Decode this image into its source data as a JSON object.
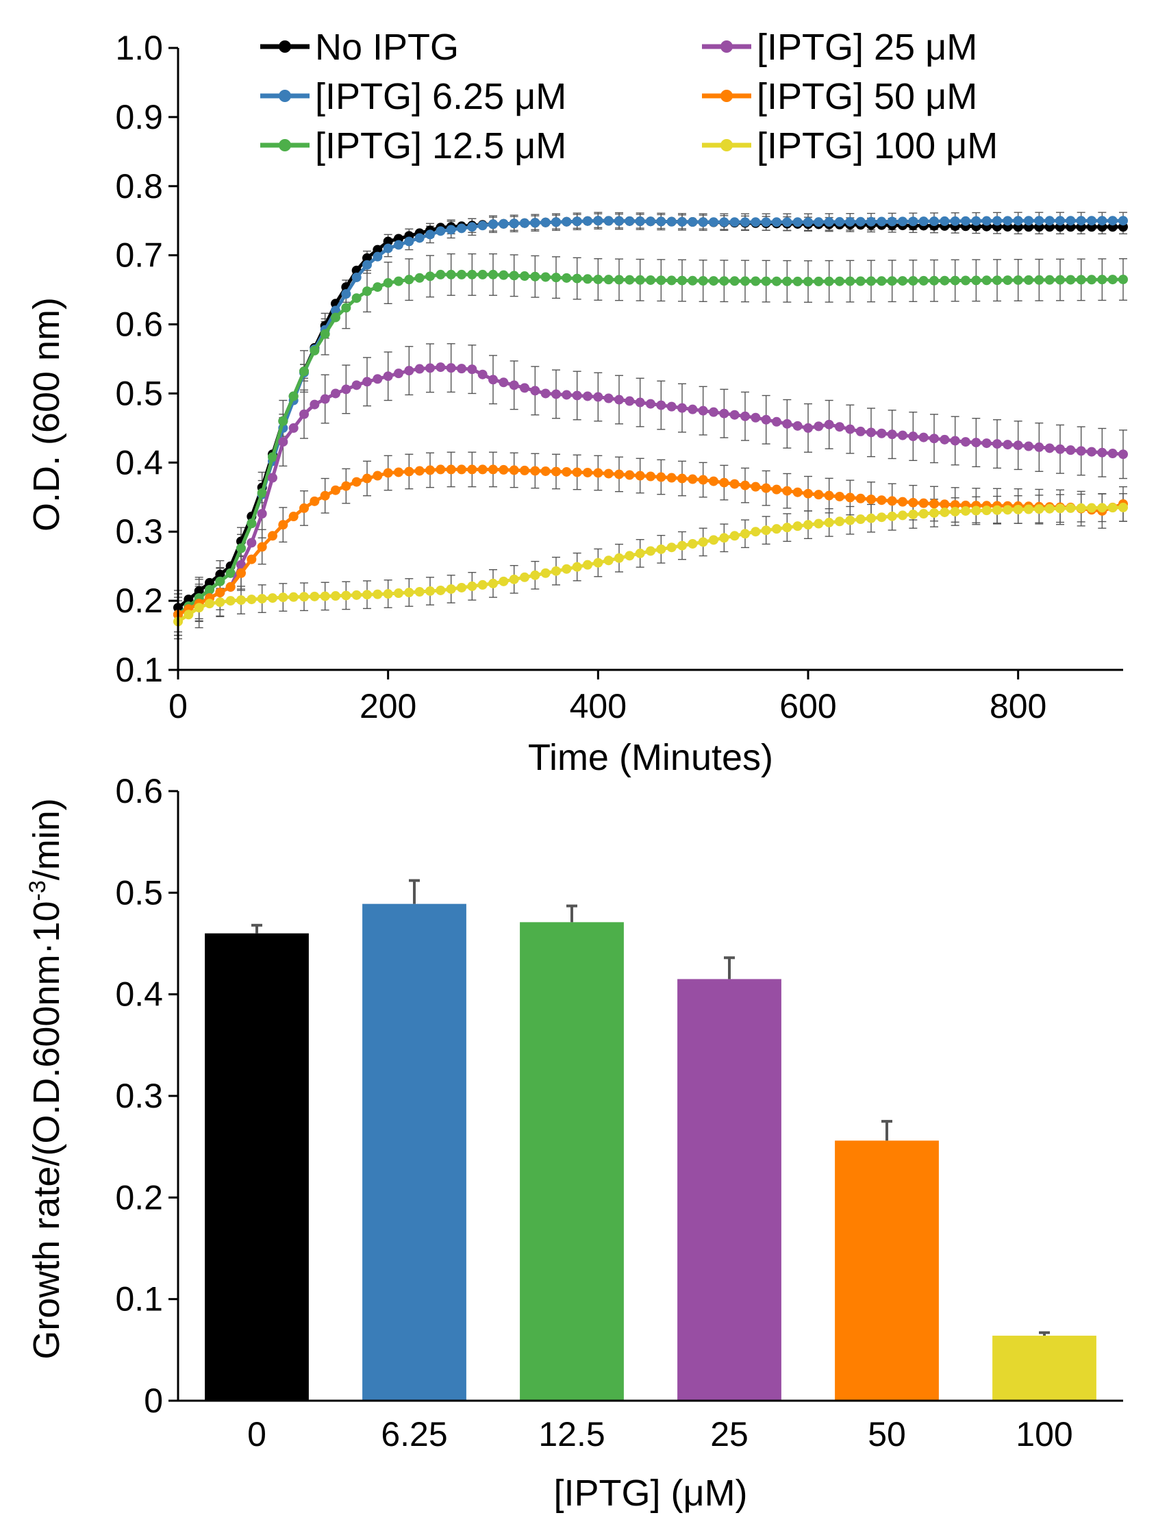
{
  "chart_data": [
    {
      "type": "line",
      "title": "",
      "xlabel": "Time (Minutes)",
      "ylabel": "O.D. (600 nm)",
      "xlim": [
        0,
        900
      ],
      "ylim": [
        0.1,
        1.0
      ],
      "xticks": [
        0,
        200,
        400,
        600,
        800
      ],
      "xtick_labels": [
        "0",
        "200",
        "400",
        "600",
        "800"
      ],
      "yticks": [
        0.1,
        0.2,
        0.3,
        0.4,
        0.5,
        0.6,
        0.7,
        0.8,
        0.9,
        1.0
      ],
      "ytick_labels": [
        "0.1",
        "0.2",
        "0.3",
        "0.4",
        "0.5",
        "0.6",
        "0.7",
        "0.8",
        "0.9",
        "1.0"
      ],
      "legend_position": "top",
      "error_bars": true,
      "series": [
        {
          "name": "No IPTG",
          "color": "#000000",
          "points": [
            [
              0,
              0.19
            ],
            [
              50,
              0.25
            ],
            [
              75,
              0.34
            ],
            [
              100,
              0.46
            ],
            [
              125,
              0.55
            ],
            [
              150,
              0.63
            ],
            [
              175,
              0.69
            ],
            [
              200,
              0.72
            ],
            [
              250,
              0.74
            ],
            [
              300,
              0.745
            ],
            [
              400,
              0.75
            ],
            [
              500,
              0.748
            ],
            [
              600,
              0.745
            ],
            [
              700,
              0.743
            ],
            [
              800,
              0.741
            ],
            [
              900,
              0.741
            ]
          ],
          "error": 0.01
        },
        {
          "name": "[IPTG] 6.25 μM",
          "color": "#3A7DB8",
          "points": [
            [
              0,
              0.18
            ],
            [
              50,
              0.24
            ],
            [
              75,
              0.33
            ],
            [
              100,
              0.45
            ],
            [
              125,
              0.55
            ],
            [
              150,
              0.62
            ],
            [
              175,
              0.68
            ],
            [
              200,
              0.71
            ],
            [
              250,
              0.735
            ],
            [
              300,
              0.745
            ],
            [
              400,
              0.75
            ],
            [
              500,
              0.748
            ],
            [
              600,
              0.748
            ],
            [
              700,
              0.749
            ],
            [
              800,
              0.75
            ],
            [
              900,
              0.75
            ]
          ],
          "error": 0.012
        },
        {
          "name": "[IPTG] 12.5 μM",
          "color": "#4DAF4A",
          "points": [
            [
              0,
              0.18
            ],
            [
              50,
              0.24
            ],
            [
              75,
              0.33
            ],
            [
              100,
              0.46
            ],
            [
              125,
              0.55
            ],
            [
              150,
              0.61
            ],
            [
              175,
              0.645
            ],
            [
              200,
              0.66
            ],
            [
              250,
              0.672
            ],
            [
              300,
              0.672
            ],
            [
              400,
              0.665
            ],
            [
              500,
              0.663
            ],
            [
              600,
              0.662
            ],
            [
              700,
              0.663
            ],
            [
              800,
              0.664
            ],
            [
              900,
              0.665
            ]
          ],
          "error": 0.03
        },
        {
          "name": "[IPTG] 25 μM",
          "color": "#984EA3",
          "points": [
            [
              0,
              0.18
            ],
            [
              50,
              0.22
            ],
            [
              75,
              0.3
            ],
            [
              100,
              0.43
            ],
            [
              125,
              0.48
            ],
            [
              150,
              0.5
            ],
            [
              175,
              0.515
            ],
            [
              200,
              0.525
            ],
            [
              225,
              0.535
            ],
            [
              250,
              0.538
            ],
            [
              280,
              0.535
            ],
            [
              300,
              0.52
            ],
            [
              350,
              0.5
            ],
            [
              400,
              0.495
            ],
            [
              450,
              0.485
            ],
            [
              500,
              0.475
            ],
            [
              550,
              0.465
            ],
            [
              600,
              0.45
            ],
            [
              620,
              0.455
            ],
            [
              650,
              0.445
            ],
            [
              700,
              0.438
            ],
            [
              750,
              0.43
            ],
            [
              800,
              0.425
            ],
            [
              850,
              0.418
            ],
            [
              900,
              0.412
            ]
          ],
          "error": 0.035
        },
        {
          "name": "[IPTG] 50 μM",
          "color": "#FF7F00",
          "points": [
            [
              0,
              0.18
            ],
            [
              50,
              0.22
            ],
            [
              75,
              0.27
            ],
            [
              100,
              0.31
            ],
            [
              125,
              0.34
            ],
            [
              150,
              0.36
            ],
            [
              175,
              0.375
            ],
            [
              200,
              0.385
            ],
            [
              250,
              0.39
            ],
            [
              300,
              0.39
            ],
            [
              400,
              0.385
            ],
            [
              450,
              0.38
            ],
            [
              500,
              0.375
            ],
            [
              550,
              0.365
            ],
            [
              600,
              0.355
            ],
            [
              650,
              0.348
            ],
            [
              700,
              0.342
            ],
            [
              750,
              0.338
            ],
            [
              800,
              0.337
            ],
            [
              850,
              0.335
            ],
            [
              880,
              0.33
            ],
            [
              900,
              0.34
            ]
          ],
          "error": 0.025
        },
        {
          "name": "[IPTG] 100 μM",
          "color": "#E5D82E",
          "points": [
            [
              0,
              0.17
            ],
            [
              25,
              0.195
            ],
            [
              50,
              0.2
            ],
            [
              100,
              0.205
            ],
            [
              150,
              0.207
            ],
            [
              200,
              0.21
            ],
            [
              250,
              0.215
            ],
            [
              300,
              0.225
            ],
            [
              350,
              0.24
            ],
            [
              400,
              0.255
            ],
            [
              450,
              0.272
            ],
            [
              500,
              0.285
            ],
            [
              550,
              0.3
            ],
            [
              600,
              0.31
            ],
            [
              650,
              0.318
            ],
            [
              700,
              0.325
            ],
            [
              750,
              0.33
            ],
            [
              800,
              0.332
            ],
            [
              850,
              0.334
            ],
            [
              900,
              0.335
            ]
          ],
          "error": 0.02
        }
      ]
    },
    {
      "type": "bar",
      "title": "",
      "xlabel": "[IPTG] (μM)",
      "ylabel_parts": {
        "main": "Growth rate/(O.D.600nm·10",
        "sup": "-3",
        "tail": "/min)"
      },
      "categories": [
        "0",
        "6.25",
        "12.5",
        "25",
        "50",
        "100"
      ],
      "values": [
        0.46,
        0.489,
        0.471,
        0.415,
        0.256,
        0.064
      ],
      "errors": [
        0.008,
        0.023,
        0.016,
        0.021,
        0.019,
        0.003
      ],
      "colors": [
        "#000000",
        "#3A7DB8",
        "#4DAF4A",
        "#984EA3",
        "#FF7F00",
        "#E5D82E"
      ],
      "ylim": [
        0,
        0.6
      ],
      "yticks": [
        0,
        0.1,
        0.2,
        0.3,
        0.4,
        0.5,
        0.6
      ],
      "ytick_labels": [
        "0",
        "0.1",
        "0.2",
        "0.3",
        "0.4",
        "0.5",
        "0.6"
      ]
    }
  ]
}
